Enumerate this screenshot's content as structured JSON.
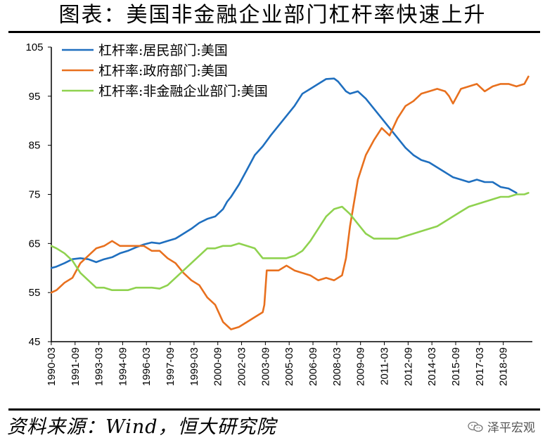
{
  "header": {
    "title": "图表：美国非金融企业部门杠杆率快速上升"
  },
  "footer": {
    "source": "资料来源：Wind，恒大研究院",
    "watermark": "泽平宏观",
    "watermark_icon": "wechat-icon"
  },
  "chart_data": {
    "type": "line",
    "title": "图表：美国非金融企业部门杠杆率快速上升",
    "xlabel": "",
    "ylabel": "",
    "ylim": [
      45,
      105
    ],
    "yticks": [
      45,
      55,
      65,
      75,
      85,
      95,
      105
    ],
    "xlim": [
      1990.17,
      2020.5
    ],
    "xtick_labels": [
      "1990-03",
      "1991-09",
      "1993-03",
      "1994-09",
      "1996-03",
      "1997-09",
      "1999-03",
      "2000-09",
      "2002-03",
      "2003-09",
      "2005-03",
      "2006-09",
      "2008-03",
      "2009-09",
      "2011-03",
      "2012-09",
      "2014-03",
      "2015-09",
      "2017-03",
      "2018-09"
    ],
    "legend_position": "top-left",
    "grid": false,
    "series": [
      {
        "name": "杠杆率:居民部门:美国",
        "color": "#1F6FBF",
        "x": [
          1990.17,
          1990.5,
          1991,
          1991.5,
          1992,
          1992.5,
          1993,
          1993.5,
          1994,
          1994.5,
          1995,
          1995.5,
          1996,
          1996.5,
          1997,
          1997.5,
          1998,
          1998.5,
          1999,
          1999.5,
          2000,
          2000.5,
          2001,
          2001.25,
          2001.5,
          2002,
          2002.5,
          2003,
          2003.5,
          2004,
          2004.5,
          2005,
          2005.5,
          2006,
          2006.5,
          2007,
          2007.5,
          2008,
          2008.25,
          2008.5,
          2008.75,
          2009,
          2009.5,
          2010,
          2010.5,
          2011,
          2011.5,
          2012,
          2012.5,
          2013,
          2013.5,
          2014,
          2014.5,
          2015,
          2015.5,
          2016,
          2016.5,
          2017,
          2017.5,
          2018,
          2018.5,
          2019,
          2019.5
        ],
        "values": [
          60,
          60.3,
          61,
          61.8,
          62,
          61.8,
          61.2,
          61.8,
          62.2,
          63,
          63.5,
          64.2,
          64.8,
          65.2,
          65,
          65.5,
          66,
          67,
          68,
          69.2,
          70,
          70.5,
          72,
          73.5,
          74.5,
          77,
          80,
          83,
          84.8,
          87,
          89,
          91,
          93,
          95.5,
          96.5,
          97.5,
          98.5,
          98.6,
          98,
          97,
          96,
          95.5,
          96,
          94.5,
          92.5,
          90.5,
          88.5,
          86.5,
          84.5,
          83,
          82,
          81.5,
          80.5,
          79.5,
          78.5,
          78,
          77.5,
          78,
          77.5,
          77.5,
          76.5,
          76.2,
          75.3
        ]
      },
      {
        "name": "杠杆率:政府部门:美国",
        "color": "#E8701E",
        "x": [
          1990.17,
          1990.5,
          1991,
          1991.5,
          1992,
          1992.5,
          1993,
          1993.5,
          1994,
          1994.5,
          1995,
          1995.5,
          1996,
          1996.5,
          1997,
          1997.5,
          1998,
          1998.5,
          1999,
          1999.5,
          2000,
          2000.5,
          2001,
          2001.5,
          2002,
          2002.5,
          2003,
          2003.5,
          2003.6,
          2003.75,
          2004,
          2004.5,
          2005,
          2005.5,
          2006,
          2006.5,
          2007,
          2007.5,
          2008,
          2008.5,
          2008.75,
          2009,
          2009.5,
          2010,
          2010.5,
          2011,
          2011.5,
          2012,
          2012.5,
          2013,
          2013.5,
          2014,
          2014.5,
          2015,
          2015.25,
          2015.5,
          2016,
          2016.5,
          2017,
          2017.5,
          2018,
          2018.5,
          2019,
          2019.5,
          2020,
          2020.25
        ],
        "values": [
          55,
          55.5,
          57,
          58,
          61,
          62.5,
          64,
          64.5,
          65.5,
          64.5,
          64.5,
          64.5,
          64.5,
          63.5,
          63.5,
          62,
          61,
          59,
          57.5,
          56.5,
          54,
          52.5,
          49,
          47.5,
          48,
          49,
          50,
          51,
          52.5,
          59.5,
          59.5,
          59.5,
          60.5,
          59.5,
          59,
          58.5,
          57.5,
          58,
          57.5,
          58.5,
          62,
          68.5,
          78,
          83,
          86,
          88.5,
          87,
          90.5,
          93,
          94,
          95.5,
          96,
          96.5,
          96,
          95,
          93.5,
          96.5,
          97,
          97.5,
          96,
          97,
          97.5,
          97.5,
          97,
          97.5,
          99
        ]
      },
      {
        "name": "杠杆率:非金融企业部门:美国",
        "color": "#8FD24F",
        "x": [
          1990.17,
          1990.5,
          1991,
          1991.5,
          1992,
          1992.5,
          1993,
          1993.5,
          1994,
          1994.5,
          1995,
          1995.5,
          1996,
          1996.5,
          1997,
          1997.5,
          1998,
          1998.5,
          1999,
          1999.5,
          2000,
          2000.5,
          2001,
          2001.5,
          2002,
          2002.5,
          2003,
          2003.5,
          2004,
          2004.5,
          2005,
          2005.5,
          2006,
          2006.5,
          2007,
          2007.5,
          2008,
          2008.5,
          2009,
          2009.5,
          2010,
          2010.5,
          2011,
          2011.5,
          2012,
          2012.5,
          2013,
          2013.5,
          2014,
          2014.5,
          2015,
          2015.5,
          2016,
          2016.5,
          2017,
          2017.5,
          2018,
          2018.5,
          2019,
          2019.5,
          2020,
          2020.25
        ],
        "values": [
          64.5,
          64,
          63,
          61.5,
          59,
          57.5,
          56,
          56,
          55.5,
          55.5,
          55.5,
          56,
          56,
          56,
          55.8,
          56.5,
          58,
          59.5,
          61,
          62.5,
          64,
          64,
          64.5,
          64.5,
          65,
          64.5,
          64,
          62,
          62,
          62,
          62,
          62.5,
          63.5,
          65.5,
          68,
          70.5,
          72,
          72.5,
          71,
          69,
          67,
          66,
          66,
          66,
          66,
          66.5,
          67,
          67.5,
          68,
          68.5,
          69.5,
          70.5,
          71.5,
          72.5,
          73,
          73.5,
          74,
          74.5,
          74.5,
          75,
          75,
          75.3
        ]
      }
    ]
  }
}
